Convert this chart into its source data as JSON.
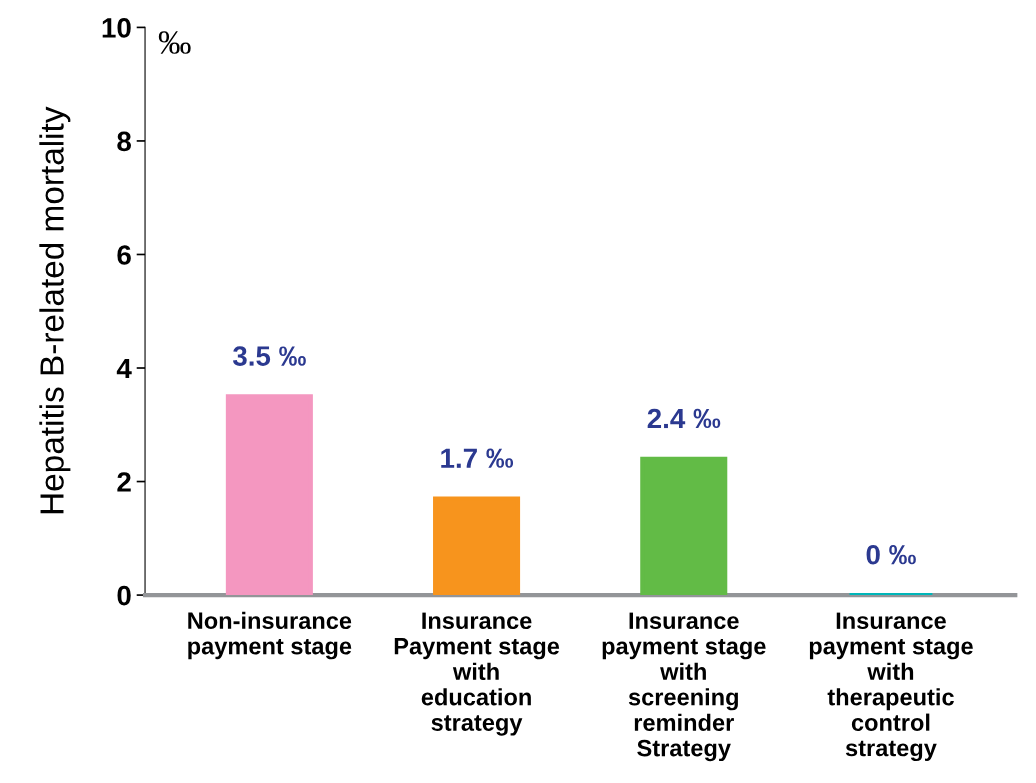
{
  "chart_data": {
    "type": "bar",
    "ylabel": "Hepatitis B-related mortality",
    "categories": [
      "Non-insurance\npayment stage",
      "Insurance\nPayment stage\nwith\neducation\nstrategy",
      "Insurance\npayment stage\nwith\nscreening\nreminder\nStrategy",
      "Insurance\npayment stage\nwith\ntherapeutic\ncontrol\nstrategy"
    ],
    "values": [
      3.5,
      1.7,
      2.4,
      0
    ],
    "colors": [
      "#f497c0",
      "#f7941d",
      "#62bb46",
      "#00b6b9"
    ],
    "value_labels": [
      "3.5 ‰",
      "1.7 ‰",
      "2.4 ‰",
      "0 ‰"
    ],
    "ylim": [
      0,
      10
    ],
    "yticks": [
      0,
      2,
      4,
      6,
      8,
      10
    ],
    "annotations": [
      "‰"
    ],
    "grid": false,
    "legend": false
  }
}
